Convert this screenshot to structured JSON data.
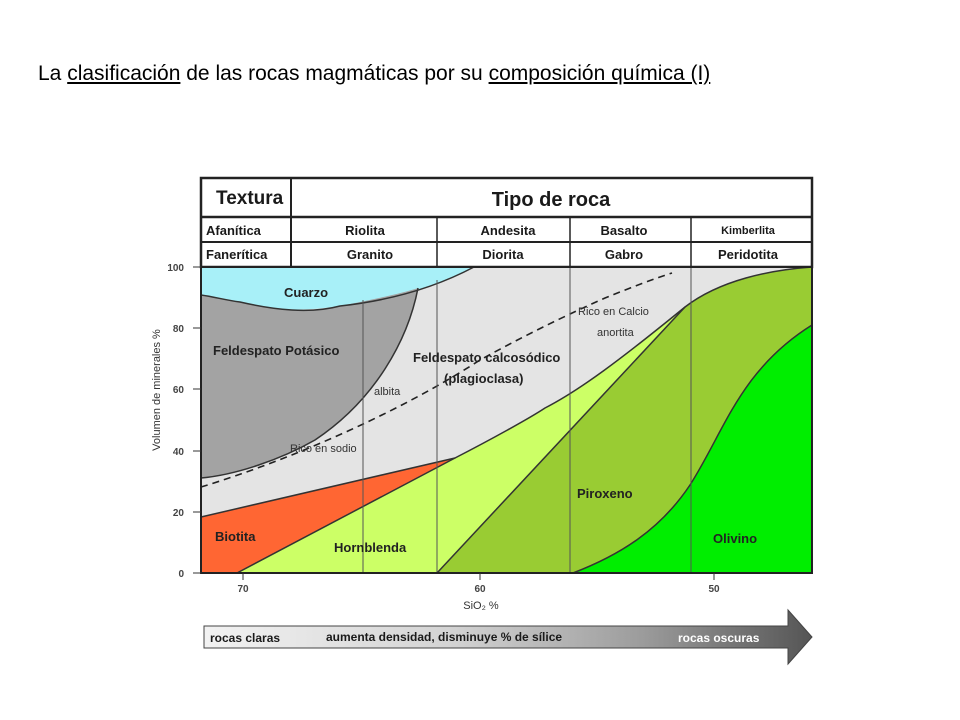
{
  "title": {
    "parts": [
      {
        "text": "La ",
        "underline": false
      },
      {
        "text": "clasificación",
        "underline": true
      },
      {
        "text": " de las rocas magmáticas por su ",
        "underline": false
      },
      {
        "text": "composición química (I)",
        "underline": true
      }
    ]
  },
  "table": {
    "texture_header": "Textura",
    "rock_type_header": "Tipo de roca",
    "row_aphanitic": {
      "label": "Afanítica",
      "rocks": [
        "Riolita",
        "Andesita",
        "Basalto",
        "Kimberlita"
      ]
    },
    "row_phaneritic": {
      "label": "Fanerítica",
      "rocks": [
        "Granito",
        "Diorita",
        "Gabro",
        "Peridotita"
      ]
    }
  },
  "chart_data": {
    "type": "area",
    "ylabel": "Volumen de minerales %",
    "xlabel": "SiO₂ %",
    "y_ticks": [
      "100",
      "80",
      "60",
      "40",
      "20",
      "0"
    ],
    "x_ticks": [
      "70",
      "60",
      "50"
    ],
    "ylim": [
      0,
      100
    ],
    "xlim": [
      71.5,
      45
    ],
    "regions": [
      {
        "name": "Cuarzo",
        "color": "#a8f0f8"
      },
      {
        "name": "Feldespato Potásico",
        "color": "#a3a3a3"
      },
      {
        "name": "Feldespato calcosódico",
        "sublabel": "(plagioclasa)",
        "color": "#e4e4e4"
      },
      {
        "name": "Biotita",
        "color": "#ff6633"
      },
      {
        "name": "Hornblenda",
        "color": "#ccff66"
      },
      {
        "name": "Piroxeno",
        "color": "#99cc33"
      },
      {
        "name": "Olivino",
        "color": "#00ee00"
      }
    ],
    "annotations": [
      "Rico en Calcio",
      "anortita",
      "albita",
      "Rico en sodio"
    ]
  },
  "arrow": {
    "light": "rocas claras",
    "middle": "aumenta densidad, disminuye % de sílice",
    "dark": "rocas oscuras"
  }
}
